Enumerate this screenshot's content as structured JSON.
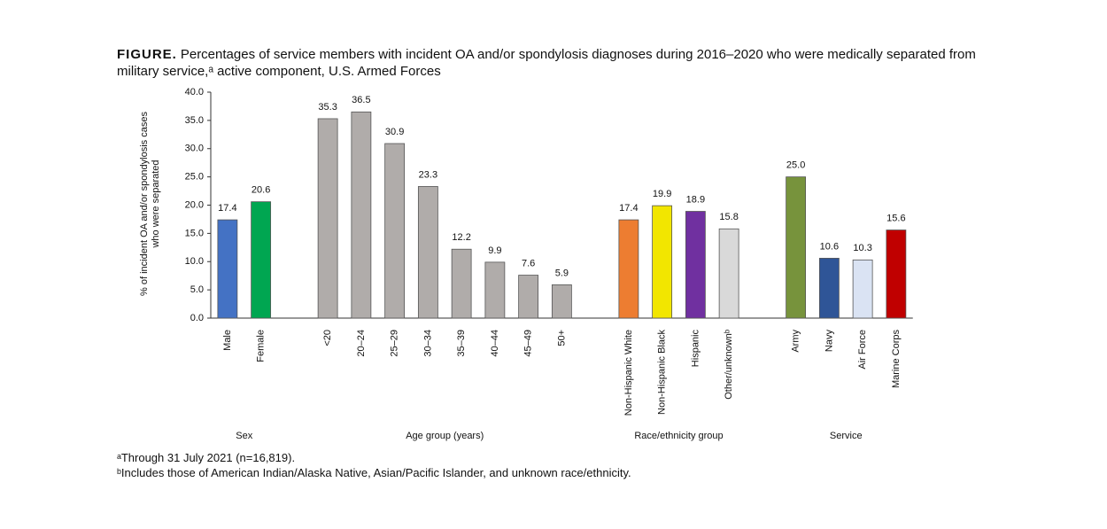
{
  "chart_data": {
    "type": "bar",
    "title_prefix": "FIGURE.",
    "title": "Percentages of service members with incident OA and/or spondylosis diagnoses during 2016–2020 who were medically separated from military service,ᵃ active component, U.S. Armed Forces",
    "ylabel": [
      "% of incident OA and/or spondylosis cases",
      "who were separated"
    ],
    "ylim": [
      0,
      40
    ],
    "yticks": [
      {
        "value": 0,
        "label": "0.0"
      },
      {
        "value": 5,
        "label": "5.0"
      },
      {
        "value": 10,
        "label": "10.0"
      },
      {
        "value": 15,
        "label": "15.0"
      },
      {
        "value": 20,
        "label": "20.0"
      },
      {
        "value": 25,
        "label": "25.0"
      },
      {
        "value": 30,
        "label": "30.0"
      },
      {
        "value": 35,
        "label": "35.0"
      },
      {
        "value": 40,
        "label": "40.0"
      }
    ],
    "groups": [
      {
        "name": "Sex",
        "categories": [
          "Male",
          "Female"
        ],
        "values": [
          17.4,
          20.6
        ],
        "value_labels": [
          "17.4",
          "20.6"
        ],
        "colors": [
          "#4472c4",
          "#00a651"
        ]
      },
      {
        "name": "Age group (years)",
        "categories": [
          "<20",
          "20–24",
          "25–29",
          "30–34",
          "35–39",
          "40–44",
          "45–49",
          "50+"
        ],
        "values": [
          35.3,
          36.5,
          30.9,
          23.3,
          12.2,
          9.9,
          7.6,
          5.9
        ],
        "value_labels": [
          "35.3",
          "36.5",
          "30.9",
          "23.3",
          "12.2",
          "9.9",
          "7.6",
          "5.9"
        ],
        "colors": [
          "#b0acaa",
          "#b0acaa",
          "#b0acaa",
          "#b0acaa",
          "#b0acaa",
          "#b0acaa",
          "#b0acaa",
          "#b0acaa"
        ]
      },
      {
        "name": "Race/ethnicity group",
        "categories": [
          "Non-Hispanic White",
          "Non-Hispanic Black",
          "Hispanic",
          "Other/unknownᵇ"
        ],
        "values": [
          17.4,
          19.9,
          18.9,
          15.8
        ],
        "value_labels": [
          "17.4",
          "19.9",
          "18.9",
          "15.8"
        ],
        "colors": [
          "#ed7d31",
          "#f2e600",
          "#7030a0",
          "#d9d9d9"
        ]
      },
      {
        "name": "Service",
        "categories": [
          "Army",
          "Navy",
          "Air Force",
          "Marine Corps"
        ],
        "values": [
          25.0,
          10.6,
          10.3,
          15.6
        ],
        "value_labels": [
          "25.0",
          "10.6",
          "10.3",
          "15.6"
        ],
        "colors": [
          "#77933c",
          "#2f5597",
          "#dae3f3",
          "#c00000"
        ]
      }
    ],
    "notes": [
      "ᵃThrough 31 July 2021 (n=16,819).",
      "ᵇIncludes those of American Indian/Alaska Native, Asian/Pacific Islander, and unknown race/ethnicity."
    ]
  }
}
